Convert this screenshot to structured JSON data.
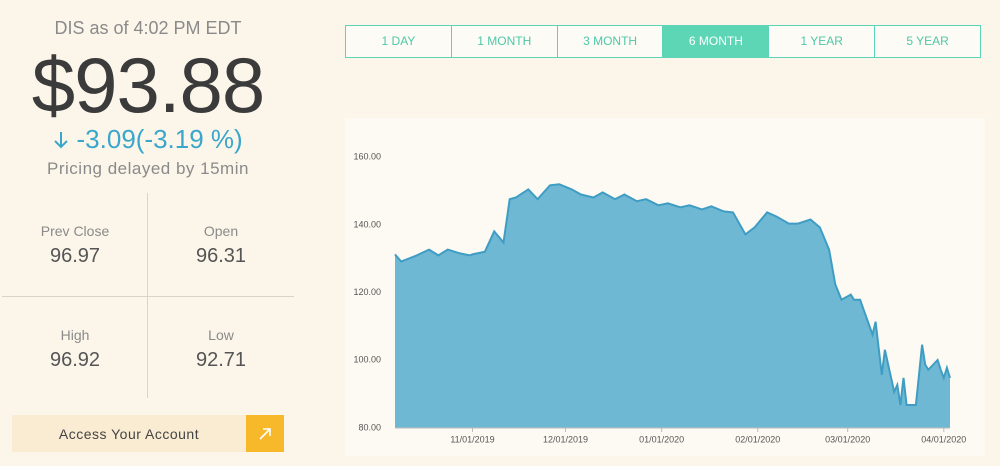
{
  "header": {
    "ticker_line": "DIS as of 4:02 PM EDT",
    "price": "$93.88",
    "change": "-3.09",
    "change_pct": "(-3.19 %)",
    "delay_note": "Pricing delayed by 15min"
  },
  "stats": [
    {
      "label": "Prev Close",
      "value": "96.97"
    },
    {
      "label": "Open",
      "value": "96.31"
    },
    {
      "label": "High",
      "value": "96.92"
    },
    {
      "label": "Low",
      "value": "92.71"
    }
  ],
  "account_button": "Access Your Account",
  "ranges": {
    "labels": [
      "1 DAY",
      "1 MONTH",
      "3 MONTH",
      "6 MONTH",
      "1 YEAR",
      "5 YEAR"
    ],
    "selected": 3
  },
  "chart_data": {
    "type": "area",
    "color": "#6fb8d4",
    "line_color": "#3f9dc4",
    "x": [
      "10/07/2019",
      "10/09/2019",
      "10/14/2019",
      "10/18/2019",
      "10/21/2019",
      "10/24/2019",
      "10/28/2019",
      "10/31/2019",
      "11/01/2019",
      "11/05/2019",
      "11/08/2019",
      "11/11/2019",
      "11/13/2019",
      "11/15/2019",
      "11/19/2019",
      "11/22/2019",
      "11/26/2019",
      "11/29/2019",
      "12/03/2019",
      "12/06/2019",
      "12/10/2019",
      "12/13/2019",
      "12/17/2019",
      "12/20/2019",
      "12/24/2019",
      "12/27/2019",
      "12/31/2019",
      "01/03/2020",
      "01/07/2020",
      "01/10/2020",
      "01/14/2020",
      "01/17/2020",
      "01/21/2020",
      "01/24/2020",
      "01/28/2020",
      "01/31/2020",
      "02/04/2020",
      "02/07/2020",
      "02/11/2020",
      "02/14/2020",
      "02/18/2020",
      "02/21/2020",
      "02/24/2020",
      "02/26/2020",
      "02/28/2020",
      "03/02/2020",
      "03/03/2020",
      "03/05/2020",
      "03/09/2020",
      "03/10/2020",
      "03/12/2020",
      "03/13/2020",
      "03/16/2020",
      "03/17/2020",
      "03/18/2020",
      "03/19/2020",
      "03/20/2020",
      "03/23/2020",
      "03/24/2020",
      "03/25/2020",
      "03/26/2020",
      "03/27/2020",
      "03/30/2020",
      "03/31/2020",
      "04/01/2020",
      "04/02/2020",
      "04/03/2020"
    ],
    "values": [
      131.3,
      129.2,
      131,
      132.7,
      131,
      132.7,
      131.6,
      131,
      131.3,
      132.1,
      138.1,
      134.8,
      147.6,
      148.1,
      150.5,
      147.6,
      151.7,
      152,
      150.5,
      149,
      148.1,
      149.6,
      147.6,
      149,
      147,
      147.6,
      145.8,
      146.4,
      145.2,
      145.8,
      144.6,
      145.5,
      144,
      143.7,
      137.2,
      139.3,
      143.7,
      142.5,
      140.4,
      140.4,
      141.6,
      139.3,
      132.7,
      122.4,
      117.9,
      119.4,
      117.9,
      117.9,
      107.6,
      111.4,
      95.7,
      103.1,
      90.7,
      92.7,
      86.8,
      94.8,
      86.8,
      86.8,
      95.7,
      104.6,
      98.7,
      97.2,
      100.1,
      97.2,
      94.8,
      97.8,
      94.8
    ],
    "xlim": [
      "10/07/2019",
      "04/03/2020"
    ],
    "xticks": [
      "11/01/2019",
      "12/01/2019",
      "01/01/2020",
      "02/01/2020",
      "03/01/2020",
      "04/01/2020"
    ],
    "ylim": [
      80,
      171
    ],
    "yticks": [
      {
        "value": 80,
        "label": "80.00"
      },
      {
        "value": 100,
        "label": "100.00"
      },
      {
        "value": 120,
        "label": "120.00"
      },
      {
        "value": 140,
        "label": "140.00"
      },
      {
        "value": 160,
        "label": "160.00"
      }
    ]
  }
}
